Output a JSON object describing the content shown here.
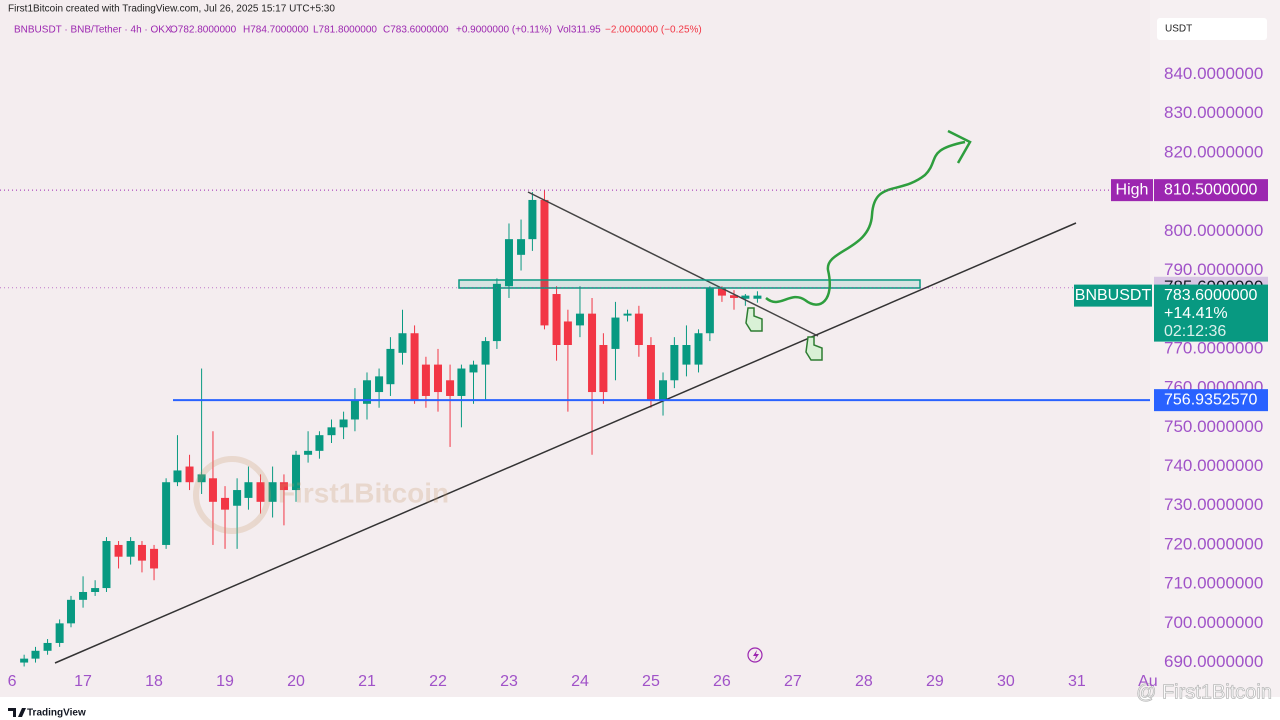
{
  "header": {
    "credit": "First1Bitcoin created with TradingView.com, Jul 26, 2025 15:17 UTC+5:30",
    "symbol_line": "BNBUSDT · BNB/Tether · 4h · OKX",
    "open": "O782.8000000",
    "high": "H784.7000000",
    "low": "L781.8000000",
    "close": "C783.6000000",
    "change": "+0.9000000 (+0.11%)",
    "volume": "Vol311.95",
    "volume_change": "−2.0000000 (−0.25%)",
    "currency": "USDT"
  },
  "footer": {
    "brand": "TradingView",
    "watermark": "@ First1Bitcoin",
    "center_watermark": "First1Bitcoin"
  },
  "chart_data": {
    "type": "candlestick",
    "x": [
      16.17,
      16.33,
      16.5,
      16.67,
      16.83,
      17,
      17.17,
      17.33,
      17.5,
      17.67,
      17.83,
      18,
      18.17,
      18.33,
      18.5,
      18.67,
      18.83,
      19,
      19.17,
      19.33,
      19.5,
      19.67,
      19.83,
      20,
      20.17,
      20.33,
      20.5,
      20.67,
      20.83,
      21,
      21.17,
      21.33,
      21.5,
      21.67,
      21.83,
      22,
      22.17,
      22.33,
      22.5,
      22.67,
      22.83,
      23,
      23.17,
      23.33,
      23.5,
      23.67,
      23.83,
      24,
      24.17,
      24.33,
      24.5,
      24.67,
      24.83,
      25,
      25.17,
      25.33,
      25.5,
      25.67,
      25.83,
      26,
      26.17,
      26.33,
      26.5
    ],
    "open": [
      690,
      691,
      693,
      695,
      700,
      706,
      708,
      709,
      720,
      717,
      720,
      719,
      720,
      736,
      740,
      736,
      737,
      732,
      730,
      732,
      736,
      731,
      736,
      734,
      743,
      744,
      748,
      750,
      752,
      756,
      759,
      761,
      769,
      774,
      766,
      766,
      762,
      758,
      764,
      766,
      772,
      786,
      794,
      798,
      808,
      784,
      777,
      776,
      779,
      771,
      770,
      778.5,
      779,
      771,
      757,
      762,
      766,
      766,
      774,
      785.5,
      783.7,
      782.8,
      782.8
    ],
    "high": [
      692,
      694,
      696,
      701,
      707,
      712,
      711,
      722,
      721,
      722,
      721,
      720,
      737,
      748,
      743,
      765,
      749,
      735,
      737,
      740,
      738,
      740,
      738,
      744,
      749,
      749,
      752,
      754,
      760,
      764,
      765,
      773,
      780,
      776,
      768,
      770,
      766,
      766,
      767,
      773,
      788,
      802,
      803,
      810,
      810.5,
      786,
      780,
      786,
      783,
      774,
      782,
      780,
      781,
      773,
      764,
      773,
      776,
      775,
      786,
      786,
      785,
      784,
      784.7
    ],
    "low": [
      689,
      690,
      692,
      694,
      699,
      704,
      707,
      708,
      714,
      715,
      713,
      711,
      719,
      735,
      734,
      733,
      720,
      719,
      719,
      729,
      728,
      727,
      725,
      731,
      741,
      742,
      746,
      747,
      749,
      752,
      755,
      758,
      766,
      756,
      755,
      754,
      745,
      750,
      756,
      757,
      770,
      783,
      790,
      795,
      775,
      767,
      754,
      773,
      743,
      756,
      762,
      777,
      768,
      755,
      753,
      760,
      763,
      764,
      772,
      782,
      780,
      781,
      781.8
    ],
    "close": [
      691,
      693,
      695,
      700,
      706,
      708,
      709,
      721,
      717,
      721,
      716,
      714,
      736,
      739,
      736,
      738,
      731,
      729,
      734,
      736,
      731,
      736,
      734,
      743,
      744,
      748,
      750,
      752,
      757,
      762,
      763,
      770,
      774,
      757,
      758,
      759,
      758,
      765,
      766,
      772,
      786.6,
      798,
      798,
      808,
      776,
      771,
      771,
      779,
      759,
      759,
      778,
      779,
      771,
      757,
      762,
      771,
      771,
      774,
      785.5,
      783.6,
      783,
      783.6,
      783.6
    ],
    "up_color": "#089981",
    "down_color": "#f23645",
    "xlim": [
      15.83,
      32.03
    ],
    "xticks": [
      {
        "value": 16,
        "label": "6"
      },
      17,
      18,
      19,
      20,
      21,
      22,
      23,
      24,
      25,
      26,
      27,
      28,
      29,
      30,
      31,
      {
        "value": 32,
        "label": "Au"
      }
    ],
    "ylim": [
      683,
      859
    ],
    "yticks": [
      {
        "value": 690,
        "label": "690.0000000"
      },
      {
        "value": 700,
        "label": "700.0000000"
      },
      {
        "value": 710,
        "label": "710.0000000"
      },
      {
        "value": 720,
        "label": "720.0000000"
      },
      {
        "value": 730,
        "label": "730.0000000"
      },
      {
        "value": 740,
        "label": "740.0000000"
      },
      {
        "value": 750,
        "label": "750.0000000"
      },
      {
        "value": 760,
        "label": "760.0000000"
      },
      {
        "value": 770,
        "label": "770.0000000"
      },
      {
        "value": 780,
        "label": "780.0000000"
      },
      {
        "value": 790,
        "label": "790.0000000"
      },
      {
        "value": 800,
        "label": "800.0000000"
      },
      {
        "value": 810,
        "label": "810.0000000"
      },
      {
        "value": 820,
        "label": "820.0000000"
      },
      {
        "value": 830,
        "label": "830.0000000"
      },
      {
        "value": 840,
        "label": "840.0000000"
      }
    ],
    "grid": false,
    "high_marker": {
      "text": "High",
      "value": 810.5,
      "label": "810.5000000",
      "color": "#9c27b0"
    },
    "level_marker": {
      "value": 785.6,
      "label": "785.6000000",
      "color": "#d8c6e4"
    },
    "support_line": {
      "value": 756.935257,
      "label": "756.9352570",
      "color": "#2962ff"
    },
    "last_price": {
      "symbol": "BNBUSDT",
      "value": 783.6,
      "label": "783.6000000",
      "change": "+14.41%",
      "countdown": "02:12:36",
      "color": "#089981"
    }
  }
}
